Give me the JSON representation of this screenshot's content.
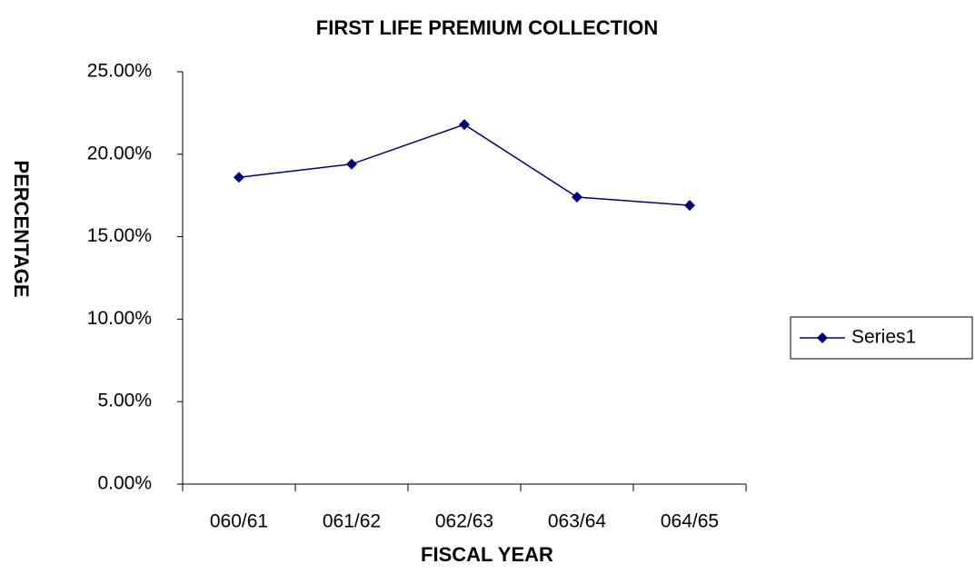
{
  "chart_data": {
    "type": "line",
    "title": "FIRST LIFE PREMIUM COLLECTION",
    "x_label": "FISCAL YEAR",
    "y_label": "PERCENTAGE",
    "categories": [
      "060/61",
      "061/62",
      "062/63",
      "063/64",
      "064/65"
    ],
    "series": [
      {
        "name": "Series1",
        "color": "#000080",
        "values": [
          18.6,
          19.4,
          21.8,
          17.4,
          16.9
        ]
      }
    ],
    "ylim": [
      0,
      25
    ],
    "yticks": [
      {
        "value": 0,
        "label": "0.00%"
      },
      {
        "value": 5,
        "label": "5.00%"
      },
      {
        "value": 10,
        "label": "10.00%"
      },
      {
        "value": 15,
        "label": "15.00%"
      },
      {
        "value": 20,
        "label": "20.00%"
      },
      {
        "value": 25,
        "label": "25.00%"
      }
    ],
    "grid": false,
    "legend": "right"
  }
}
